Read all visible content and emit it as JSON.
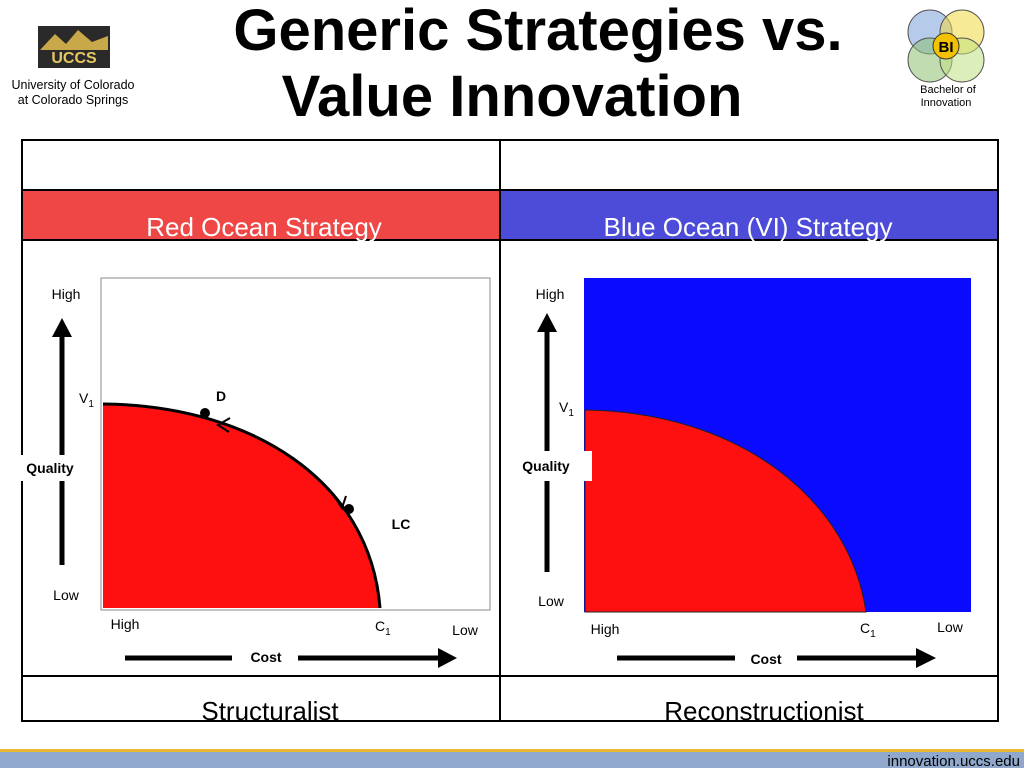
{
  "header": {
    "title_lines": [
      "Generic Strategies vs.",
      "Value Innovation"
    ],
    "left_logo": {
      "mark": "UCCS",
      "lines": [
        "University of Colorado",
        "at Colorado Springs"
      ]
    },
    "right_logo": {
      "mark": "BI",
      "lines": [
        "Bachelor of",
        "Innovation"
      ]
    }
  },
  "table": {
    "headers": [
      "Red Ocean Strategy",
      "Blue Ocean (VI) Strategy"
    ],
    "footers": [
      "Structuralist",
      "Reconstructionist"
    ],
    "diagrams": [
      {
        "y_high": "High",
        "y_low": "Low",
        "y_axis": "Quality",
        "v": {
          "letter": "V",
          "sub": "1"
        },
        "c": {
          "letter": "C",
          "sub": "1"
        },
        "x_high": "High",
        "x_low": "Low",
        "x_axis": "Cost",
        "points": [
          "D",
          "LC"
        ]
      },
      {
        "y_high": "High",
        "y_low": "Low",
        "y_axis": "Quality",
        "v": {
          "letter": "V",
          "sub": "1"
        },
        "c": {
          "letter": "C",
          "sub": "1"
        },
        "x_high": "High",
        "x_low": "Low",
        "x_axis": "Cost"
      }
    ]
  },
  "footer": {
    "url": "innovation.uccs.edu"
  }
}
